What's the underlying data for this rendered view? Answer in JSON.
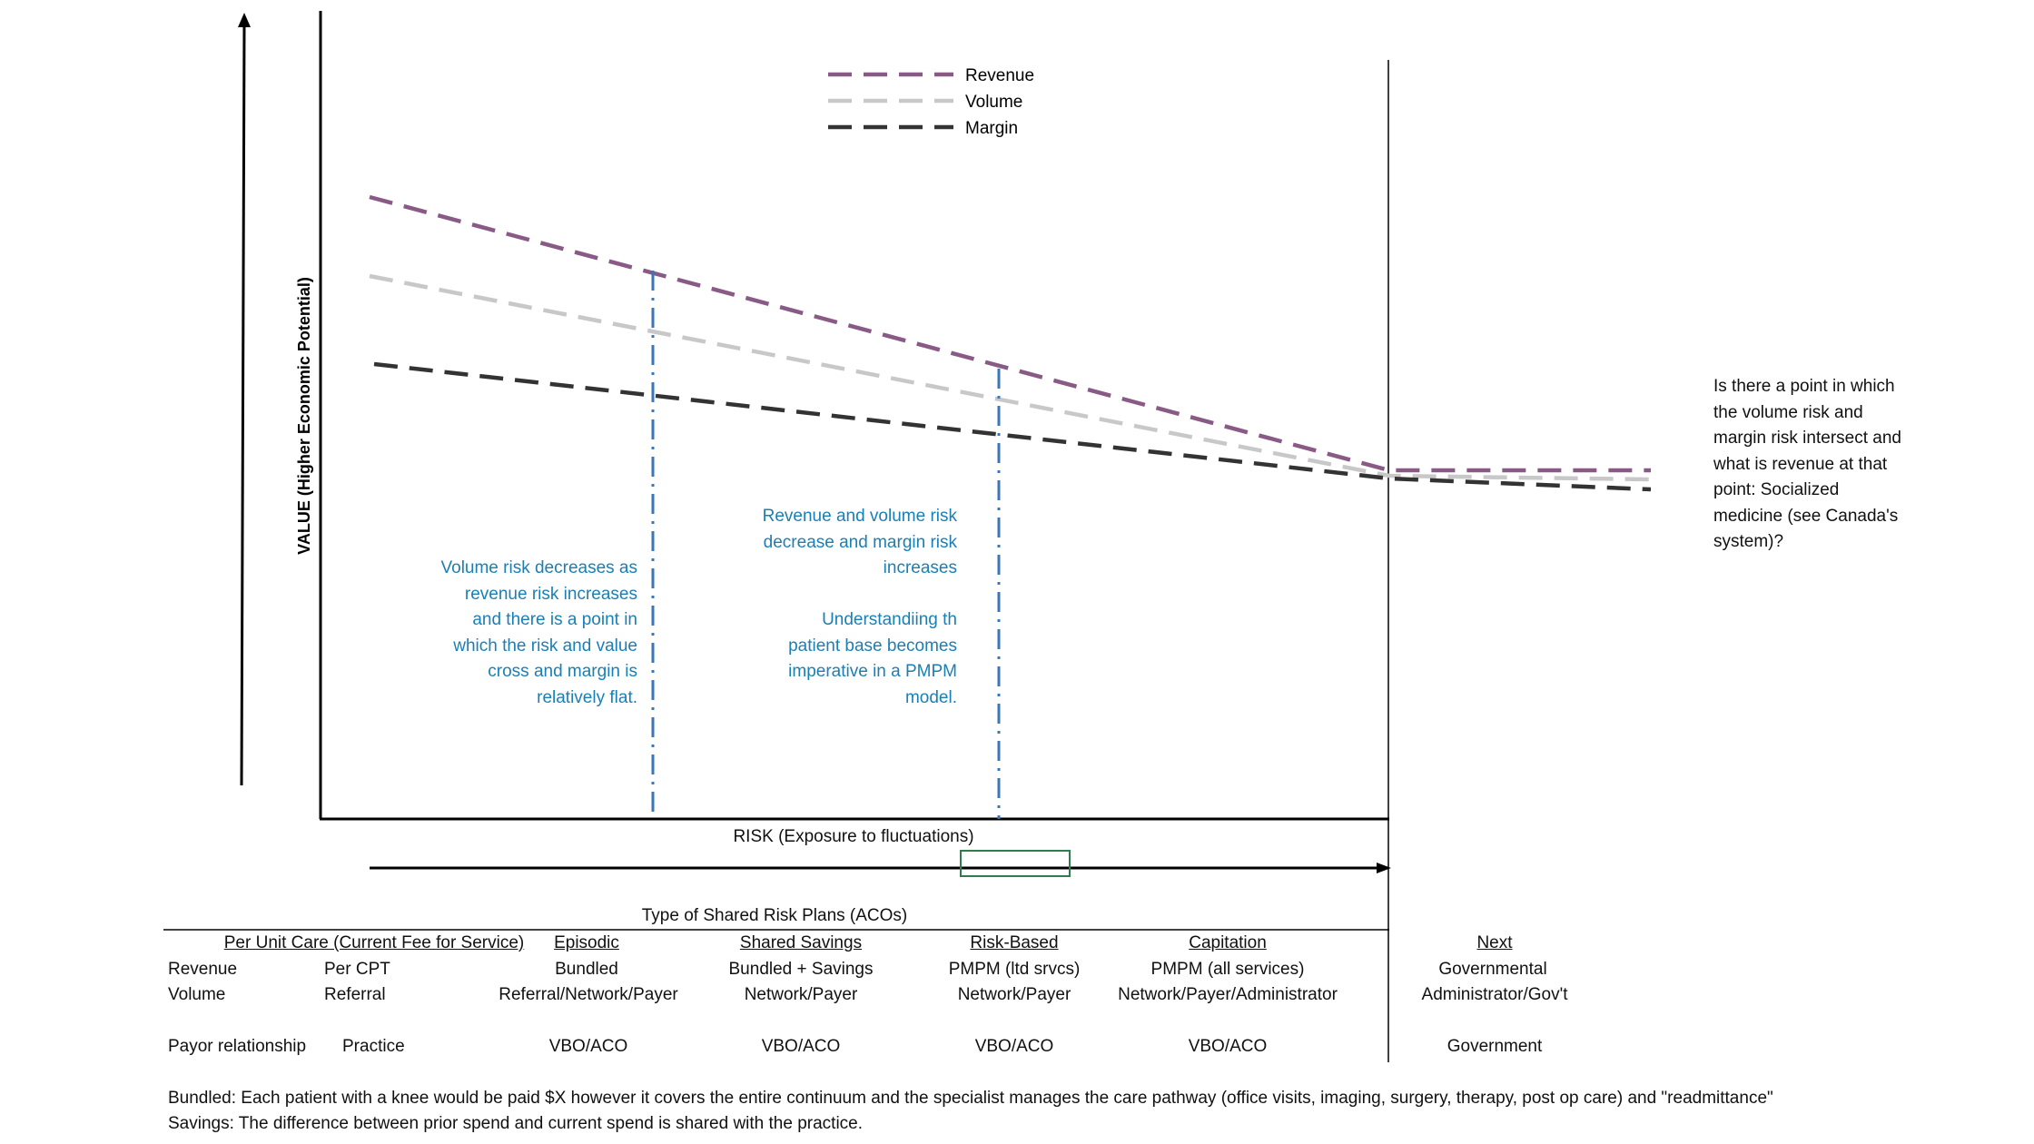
{
  "chart_data": {
    "type": "line",
    "xlabel": "RISK (Exposure to fluctuations)",
    "ylabel": "VALUE (Higher Economic Potential)",
    "legend": [
      {
        "name": "Revenue",
        "color": "#8a5a86"
      },
      {
        "name": "Volume",
        "color": "#c8c8c8"
      },
      {
        "name": "Margin",
        "color": "#333333"
      }
    ],
    "series": [
      {
        "name": "Revenue",
        "color": "#8a5a86",
        "trend": "decreasing steeply toward convergence, then flat beyond the boundary"
      },
      {
        "name": "Volume",
        "color": "#c8c8c8",
        "trend": "decreasing toward convergence, then flat beyond the boundary"
      },
      {
        "name": "Margin",
        "color": "#333333",
        "trend": "decreasing gently toward convergence, continues slightly lower beyond the boundary"
      }
    ],
    "reference_lines": [
      "dash-dot blue vertical at first transition",
      "dash-dot blue vertical at second transition"
    ]
  },
  "annotations": {
    "left": [
      "Volume risk decreases as",
      "revenue risk increases",
      "and there is a point in",
      "which the risk and value",
      "cross and margin is",
      "relatively flat."
    ],
    "mid_top": [
      "Revenue and volume risk",
      "decrease and margin risk",
      "increases"
    ],
    "mid_bottom": [
      "Understandiing th",
      "patient base becomes",
      "imperative in a PMPM",
      "model."
    ],
    "right": [
      "Is there a point in which",
      "the volume risk and",
      "margin risk intersect and",
      "what is revenue at that",
      "point: Socialized",
      "medicine (see Canada's",
      "system)?"
    ]
  },
  "table": {
    "title": "Type of Shared Risk Plans (ACOs)",
    "headers": [
      "Per Unit Care (Current Fee for Service)",
      "Episodic",
      "Shared Savings",
      "Risk-Based",
      "Capitation",
      "Next"
    ],
    "row_labels": [
      "Revenue",
      "Volume",
      "Payor relationship"
    ],
    "first_col": [
      "Per CPT",
      "Referral",
      "Practice"
    ],
    "columns": [
      {
        "revenue": "Bundled",
        "volume": "Referral/Network/Payer",
        "payor": "VBO/ACO"
      },
      {
        "revenue": "Bundled + Savings",
        "volume": "Network/Payer",
        "payor": "VBO/ACO"
      },
      {
        "revenue": "PMPM (ltd srvcs)",
        "volume": "Network/Payer",
        "payor": "VBO/ACO"
      },
      {
        "revenue": "PMPM (all services)",
        "volume": "Network/Payer/Administrator",
        "payor": "VBO/ACO"
      },
      {
        "revenue": "Governmental",
        "volume": "Administrator/Gov't",
        "payor": "Government"
      }
    ]
  },
  "footnotes": [
    "Bundled: Each patient with a knee would be paid $X however it covers the entire continuum and the specialist manages the care pathway (office visits, imaging, surgery, therapy, post op care) and \"readmittance\"",
    "Savings: The difference between prior spend and current spend is shared with the practice."
  ]
}
